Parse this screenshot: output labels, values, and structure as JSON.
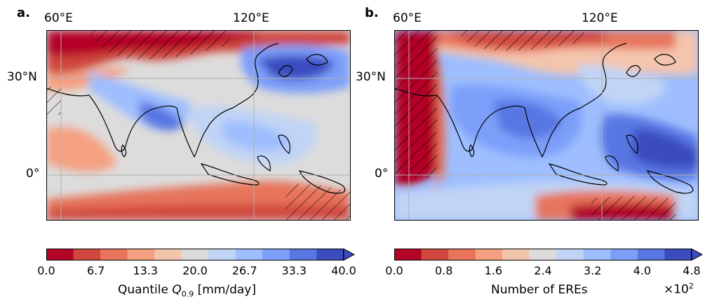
{
  "panels": [
    {
      "label": "a.",
      "lon_ticks": [
        "60°E",
        "120°E"
      ],
      "lat_ticks": [
        "30°N",
        "0°"
      ],
      "colorbar": {
        "ticks": [
          "0.0",
          "6.7",
          "13.3",
          "20.0",
          "26.7",
          "33.3",
          "40.0"
        ],
        "label_prefix": "Quantile ",
        "label_symbol": "Q",
        "label_sub": "0.9",
        "label_suffix": " [mm/day]"
      }
    },
    {
      "label": "b.",
      "lon_ticks": [
        "60°E",
        "120°E"
      ],
      "lat_ticks": [
        "30°N",
        "0°"
      ],
      "colorbar": {
        "ticks": [
          "0.0",
          "0.8",
          "1.6",
          "2.4",
          "3.2",
          "4.0",
          "4.8"
        ],
        "label": "Number of EREs",
        "offset_base": "×10",
        "offset_exp": "2"
      }
    }
  ],
  "colormap": [
    "#b40426",
    "#d0473d",
    "#e7745b",
    "#f5a081",
    "#f4c5ad",
    "#dddcdc",
    "#c0d4f5",
    "#9ebeff",
    "#7b9ff9",
    "#5977e3",
    "#3b4cc0"
  ]
}
